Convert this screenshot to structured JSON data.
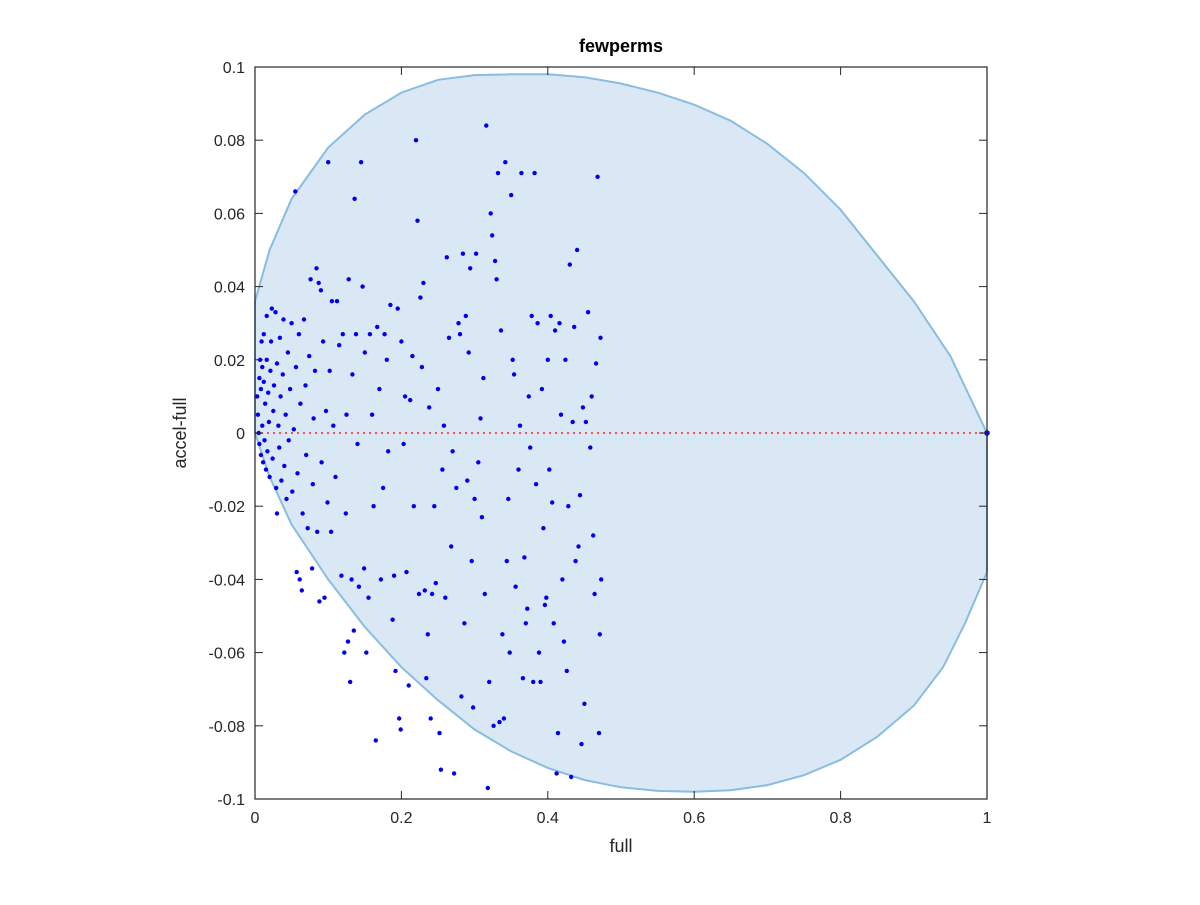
{
  "chart_data": {
    "type": "scatter",
    "title": "fewperms",
    "xlabel": "full",
    "ylabel": "accel-full",
    "xlim": [
      0,
      1
    ],
    "ylim": [
      -0.1,
      0.1
    ],
    "xticks": [
      0,
      0.2,
      0.4,
      0.6,
      0.8,
      1
    ],
    "xtick_labels": [
      "0",
      "0.2",
      "0.4",
      "0.6",
      "0.8",
      "1"
    ],
    "yticks": [
      -0.1,
      -0.08,
      -0.06,
      -0.04,
      -0.02,
      0,
      0.02,
      0.04,
      0.06,
      0.08,
      0.1
    ],
    "ytick_labels": [
      "-0.1",
      "-0.08",
      "-0.06",
      "-0.04",
      "-0.02",
      "0",
      "0.02",
      "0.04",
      "0.06",
      "0.08",
      "0.1"
    ],
    "grid": false,
    "box": true,
    "colors": {
      "points": "#0000ee",
      "region_fill": "#d9e8f4",
      "region_edge": "#88bde0",
      "zero_line": "#ff2020",
      "axes": "#262626"
    },
    "region_boundary": {
      "top": [
        [
          0,
          0.036
        ],
        [
          0.02,
          0.05
        ],
        [
          0.05,
          0.064
        ],
        [
          0.1,
          0.078
        ],
        [
          0.15,
          0.087
        ],
        [
          0.2,
          0.093
        ],
        [
          0.25,
          0.0965
        ],
        [
          0.3,
          0.0978
        ],
        [
          0.35,
          0.098
        ],
        [
          0.4,
          0.098
        ],
        [
          0.45,
          0.0972
        ],
        [
          0.5,
          0.0955
        ],
        [
          0.55,
          0.093
        ],
        [
          0.6,
          0.0897
        ],
        [
          0.65,
          0.0853
        ],
        [
          0.7,
          0.079
        ],
        [
          0.75,
          0.071
        ],
        [
          0.8,
          0.061
        ],
        [
          0.85,
          0.0485
        ],
        [
          0.9,
          0.036
        ],
        [
          0.95,
          0.021
        ],
        [
          1.0,
          0.0
        ]
      ],
      "bottom": [
        [
          1.0,
          0.0
        ],
        [
          1.0,
          -0.038
        ],
        [
          0.97,
          -0.052
        ],
        [
          0.94,
          -0.064
        ],
        [
          0.9,
          -0.0745
        ],
        [
          0.85,
          -0.083
        ],
        [
          0.8,
          -0.0893
        ],
        [
          0.75,
          -0.0935
        ],
        [
          0.7,
          -0.0962
        ],
        [
          0.65,
          -0.0976
        ],
        [
          0.6,
          -0.098
        ],
        [
          0.55,
          -0.0978
        ],
        [
          0.5,
          -0.0968
        ],
        [
          0.45,
          -0.0948
        ],
        [
          0.4,
          -0.0915
        ],
        [
          0.35,
          -0.087
        ],
        [
          0.3,
          -0.081
        ],
        [
          0.25,
          -0.073
        ],
        [
          0.2,
          -0.064
        ],
        [
          0.15,
          -0.053
        ],
        [
          0.1,
          -0.04
        ],
        [
          0.05,
          -0.025
        ],
        [
          0.02,
          -0.012
        ],
        [
          0,
          0.0
        ]
      ]
    },
    "reference_line": {
      "y": 0,
      "x": [
        0,
        1
      ],
      "style": "dotted"
    },
    "points": [
      [
        0.003,
        0.01
      ],
      [
        0.004,
        0.005
      ],
      [
        0.005,
        0.0
      ],
      [
        0.006,
        0.015
      ],
      [
        0.006,
        -0.003
      ],
      [
        0.007,
        0.02
      ],
      [
        0.008,
        0.012
      ],
      [
        0.008,
        -0.006
      ],
      [
        0.009,
        0.025
      ],
      [
        0.01,
        0.018
      ],
      [
        0.01,
        0.002
      ],
      [
        0.011,
        -0.008
      ],
      [
        0.012,
        0.014
      ],
      [
        0.012,
        0.027
      ],
      [
        0.013,
        -0.002
      ],
      [
        0.014,
        0.008
      ],
      [
        0.015,
        -0.01
      ],
      [
        0.016,
        0.02
      ],
      [
        0.016,
        0.032
      ],
      [
        0.017,
        -0.005
      ],
      [
        0.018,
        0.011
      ],
      [
        0.019,
        0.003
      ],
      [
        0.02,
        -0.012
      ],
      [
        0.021,
        0.017
      ],
      [
        0.022,
        0.025
      ],
      [
        0.023,
        0.034
      ],
      [
        0.024,
        -0.007
      ],
      [
        0.025,
        0.006
      ],
      [
        0.026,
        0.013
      ],
      [
        0.028,
        0.033
      ],
      [
        0.029,
        -0.015
      ],
      [
        0.03,
        0.019
      ],
      [
        0.03,
        -0.022
      ],
      [
        0.032,
        0.002
      ],
      [
        0.033,
        -0.004
      ],
      [
        0.034,
        0.026
      ],
      [
        0.035,
        0.01
      ],
      [
        0.036,
        -0.013
      ],
      [
        0.038,
        0.016
      ],
      [
        0.039,
        0.031
      ],
      [
        0.04,
        -0.009
      ],
      [
        0.042,
        0.005
      ],
      [
        0.043,
        -0.018
      ],
      [
        0.045,
        0.022
      ],
      [
        0.046,
        -0.002
      ],
      [
        0.048,
        0.012
      ],
      [
        0.05,
        0.03
      ],
      [
        0.051,
        -0.016
      ],
      [
        0.053,
        0.001
      ],
      [
        0.055,
        0.066
      ],
      [
        0.056,
        0.018
      ],
      [
        0.057,
        -0.038
      ],
      [
        0.058,
        -0.011
      ],
      [
        0.06,
        0.027
      ],
      [
        0.061,
        -0.04
      ],
      [
        0.062,
        0.008
      ],
      [
        0.064,
        -0.043
      ],
      [
        0.065,
        -0.022
      ],
      [
        0.067,
        0.031
      ],
      [
        0.069,
        0.013
      ],
      [
        0.07,
        -0.006
      ],
      [
        0.072,
        -0.026
      ],
      [
        0.074,
        0.021
      ],
      [
        0.076,
        0.042
      ],
      [
        0.078,
        -0.037
      ],
      [
        0.079,
        -0.014
      ],
      [
        0.08,
        0.004
      ],
      [
        0.082,
        0.017
      ],
      [
        0.084,
        0.045
      ],
      [
        0.085,
        -0.027
      ],
      [
        0.087,
        0.041
      ],
      [
        0.088,
        -0.046
      ],
      [
        0.09,
        0.039
      ],
      [
        0.091,
        -0.008
      ],
      [
        0.093,
        0.025
      ],
      [
        0.095,
        -0.045
      ],
      [
        0.097,
        0.006
      ],
      [
        0.099,
        -0.019
      ],
      [
        0.1,
        0.074
      ],
      [
        0.102,
        0.017
      ],
      [
        0.104,
        -0.027
      ],
      [
        0.105,
        0.036
      ],
      [
        0.107,
        0.002
      ],
      [
        0.11,
        -0.012
      ],
      [
        0.112,
        0.036
      ],
      [
        0.115,
        0.024
      ],
      [
        0.118,
        -0.039
      ],
      [
        0.12,
        0.027
      ],
      [
        0.122,
        -0.06
      ],
      [
        0.124,
        -0.022
      ],
      [
        0.125,
        0.005
      ],
      [
        0.127,
        -0.057
      ],
      [
        0.128,
        0.042
      ],
      [
        0.13,
        -0.068
      ],
      [
        0.132,
        -0.04
      ],
      [
        0.133,
        0.016
      ],
      [
        0.135,
        -0.054
      ],
      [
        0.136,
        0.064
      ],
      [
        0.138,
        0.027
      ],
      [
        0.14,
        -0.003
      ],
      [
        0.142,
        -0.042
      ],
      [
        0.145,
        0.074
      ],
      [
        0.147,
        0.04
      ],
      [
        0.149,
        -0.037
      ],
      [
        0.15,
        0.022
      ],
      [
        0.152,
        -0.06
      ],
      [
        0.155,
        -0.045
      ],
      [
        0.157,
        0.027
      ],
      [
        0.16,
        0.005
      ],
      [
        0.162,
        -0.02
      ],
      [
        0.165,
        -0.084
      ],
      [
        0.167,
        0.029
      ],
      [
        0.17,
        0.012
      ],
      [
        0.172,
        -0.04
      ],
      [
        0.175,
        -0.015
      ],
      [
        0.177,
        0.027
      ],
      [
        0.18,
        0.02
      ],
      [
        0.182,
        -0.005
      ],
      [
        0.185,
        0.035
      ],
      [
        0.188,
        -0.051
      ],
      [
        0.19,
        -0.039
      ],
      [
        0.192,
        -0.065
      ],
      [
        0.195,
        0.034
      ],
      [
        0.197,
        -0.078
      ],
      [
        0.199,
        -0.081
      ],
      [
        0.2,
        0.025
      ],
      [
        0.203,
        -0.003
      ],
      [
        0.205,
        0.01
      ],
      [
        0.207,
        -0.038
      ],
      [
        0.21,
        -0.069
      ],
      [
        0.212,
        0.009
      ],
      [
        0.215,
        0.021
      ],
      [
        0.217,
        -0.02
      ],
      [
        0.22,
        0.08
      ],
      [
        0.222,
        0.058
      ],
      [
        0.224,
        -0.044
      ],
      [
        0.226,
        0.037
      ],
      [
        0.228,
        0.018
      ],
      [
        0.23,
        0.041
      ],
      [
        0.232,
        -0.043
      ],
      [
        0.234,
        -0.067
      ],
      [
        0.236,
        -0.055
      ],
      [
        0.238,
        0.007
      ],
      [
        0.24,
        -0.078
      ],
      [
        0.242,
        -0.044
      ],
      [
        0.245,
        -0.02
      ],
      [
        0.247,
        -0.041
      ],
      [
        0.25,
        0.012
      ],
      [
        0.252,
        -0.082
      ],
      [
        0.254,
        -0.092
      ],
      [
        0.256,
        -0.01
      ],
      [
        0.258,
        0.002
      ],
      [
        0.26,
        -0.045
      ],
      [
        0.262,
        0.048
      ],
      [
        0.265,
        0.026
      ],
      [
        0.268,
        -0.031
      ],
      [
        0.27,
        -0.005
      ],
      [
        0.272,
        -0.093
      ],
      [
        0.275,
        -0.015
      ],
      [
        0.278,
        0.03
      ],
      [
        0.28,
        0.027
      ],
      [
        0.282,
        -0.072
      ],
      [
        0.284,
        0.049
      ],
      [
        0.286,
        -0.052
      ],
      [
        0.288,
        0.032
      ],
      [
        0.29,
        -0.013
      ],
      [
        0.292,
        0.022
      ],
      [
        0.294,
        0.045
      ],
      [
        0.296,
        -0.035
      ],
      [
        0.298,
        -0.075
      ],
      [
        0.3,
        -0.018
      ],
      [
        0.302,
        0.049
      ],
      [
        0.305,
        -0.008
      ],
      [
        0.308,
        0.004
      ],
      [
        0.31,
        -0.023
      ],
      [
        0.312,
        0.015
      ],
      [
        0.314,
        -0.044
      ],
      [
        0.316,
        0.084
      ],
      [
        0.318,
        -0.097
      ],
      [
        0.32,
        -0.068
      ],
      [
        0.322,
        0.06
      ],
      [
        0.324,
        0.054
      ],
      [
        0.326,
        -0.08
      ],
      [
        0.328,
        0.047
      ],
      [
        0.33,
        0.042
      ],
      [
        0.332,
        0.071
      ],
      [
        0.334,
        -0.079
      ],
      [
        0.336,
        0.028
      ],
      [
        0.338,
        -0.055
      ],
      [
        0.34,
        -0.078
      ],
      [
        0.342,
        0.074
      ],
      [
        0.344,
        -0.035
      ],
      [
        0.346,
        -0.018
      ],
      [
        0.348,
        -0.06
      ],
      [
        0.35,
        0.065
      ],
      [
        0.352,
        0.02
      ],
      [
        0.354,
        0.016
      ],
      [
        0.356,
        -0.042
      ],
      [
        0.36,
        -0.01
      ],
      [
        0.362,
        0.002
      ],
      [
        0.364,
        0.071
      ],
      [
        0.366,
        -0.067
      ],
      [
        0.368,
        -0.034
      ],
      [
        0.37,
        -0.052
      ],
      [
        0.372,
        -0.048
      ],
      [
        0.374,
        0.01
      ],
      [
        0.376,
        -0.004
      ],
      [
        0.378,
        0.032
      ],
      [
        0.38,
        -0.068
      ],
      [
        0.382,
        0.071
      ],
      [
        0.384,
        -0.014
      ],
      [
        0.386,
        0.03
      ],
      [
        0.388,
        -0.06
      ],
      [
        0.39,
        -0.068
      ],
      [
        0.392,
        0.012
      ],
      [
        0.394,
        -0.026
      ],
      [
        0.396,
        -0.047
      ],
      [
        0.398,
        -0.045
      ],
      [
        0.4,
        0.02
      ],
      [
        0.402,
        -0.01
      ],
      [
        0.404,
        0.032
      ],
      [
        0.406,
        -0.019
      ],
      [
        0.408,
        -0.052
      ],
      [
        0.41,
        0.028
      ],
      [
        0.412,
        -0.093
      ],
      [
        0.414,
        -0.082
      ],
      [
        0.416,
        0.03
      ],
      [
        0.418,
        0.005
      ],
      [
        0.42,
        -0.04
      ],
      [
        0.422,
        -0.057
      ],
      [
        0.424,
        0.02
      ],
      [
        0.426,
        -0.065
      ],
      [
        0.428,
        -0.02
      ],
      [
        0.43,
        0.046
      ],
      [
        0.432,
        -0.094
      ],
      [
        0.434,
        0.003
      ],
      [
        0.436,
        0.029
      ],
      [
        0.438,
        -0.035
      ],
      [
        0.44,
        0.05
      ],
      [
        0.442,
        -0.031
      ],
      [
        0.444,
        -0.017
      ],
      [
        0.446,
        -0.085
      ],
      [
        0.448,
        0.007
      ],
      [
        0.45,
        -0.074
      ],
      [
        0.452,
        0.003
      ],
      [
        0.455,
        0.033
      ],
      [
        0.458,
        -0.004
      ],
      [
        0.46,
        0.01
      ],
      [
        0.462,
        -0.028
      ],
      [
        0.464,
        -0.044
      ],
      [
        0.466,
        0.019
      ],
      [
        0.468,
        0.07
      ],
      [
        0.47,
        -0.082
      ],
      [
        0.471,
        -0.055
      ],
      [
        0.472,
        0.026
      ],
      [
        0.473,
        -0.04
      ]
    ]
  }
}
